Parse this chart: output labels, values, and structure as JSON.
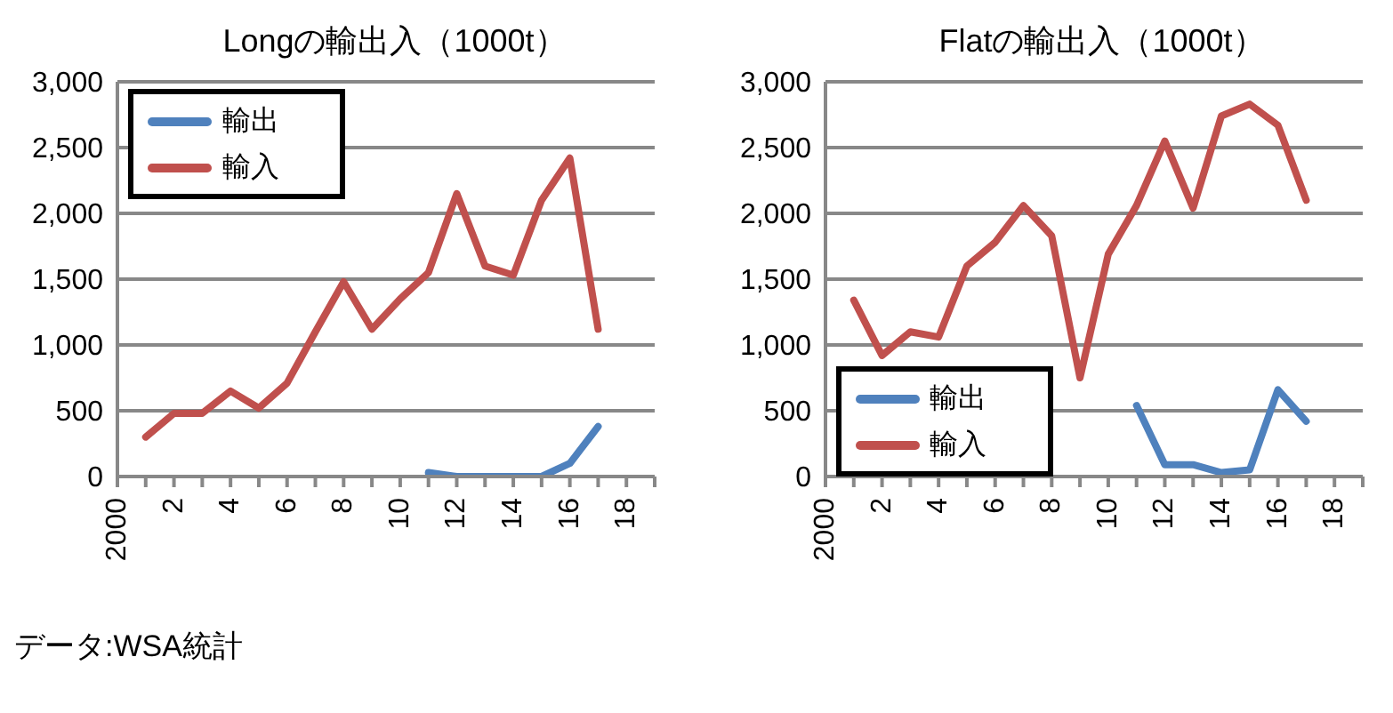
{
  "chart_data": [
    {
      "type": "line",
      "title": "Longの輸出入（1000t）",
      "categories": [
        "2000",
        null,
        "2",
        null,
        "4",
        null,
        "6",
        null,
        "8",
        null,
        "10",
        null,
        "12",
        null,
        "14",
        null,
        "16",
        null,
        "18",
        null
      ],
      "series": [
        {
          "name": "輸出",
          "color": "#4f81bd",
          "values": [
            null,
            null,
            null,
            null,
            null,
            null,
            null,
            null,
            null,
            null,
            null,
            30,
            0,
            0,
            0,
            0,
            100,
            380,
            null,
            null
          ]
        },
        {
          "name": "輸入",
          "color": "#c0504d",
          "values": [
            null,
            300,
            480,
            480,
            650,
            520,
            710,
            1100,
            1480,
            1120,
            1350,
            1550,
            2150,
            1600,
            1530,
            2100,
            2420,
            1120,
            null,
            null
          ]
        }
      ],
      "ylim": [
        0,
        3000
      ],
      "yticks": [
        {
          "value": 0,
          "label": "0"
        },
        {
          "value": 500,
          "label": "500"
        },
        {
          "value": 1000,
          "label": "1,000"
        },
        {
          "value": 1500,
          "label": "1,500"
        },
        {
          "value": 2000,
          "label": "2,000"
        },
        {
          "value": 2500,
          "label": "2,500"
        },
        {
          "value": 3000,
          "label": "3,000"
        }
      ],
      "grid": "y",
      "legend": "top left",
      "marker": "none",
      "line_style": "solid",
      "annotations": [
        "データ:WSA統計"
      ]
    },
    {
      "type": "line",
      "title": "Flatの輸出入（1000t）",
      "categories": [
        "2000",
        null,
        "2",
        null,
        "4",
        null,
        "6",
        null,
        "8",
        null,
        "10",
        null,
        "12",
        null,
        "14",
        null,
        "16",
        null,
        "18",
        null
      ],
      "series": [
        {
          "name": "輸出",
          "color": "#4f81bd",
          "values": [
            null,
            null,
            null,
            null,
            null,
            null,
            null,
            null,
            null,
            null,
            null,
            540,
            90,
            90,
            30,
            50,
            660,
            420,
            null,
            null
          ]
        },
        {
          "name": "輸入",
          "color": "#c0504d",
          "values": [
            null,
            1340,
            920,
            1100,
            1060,
            1600,
            1780,
            2060,
            1830,
            750,
            1690,
            2060,
            2550,
            2040,
            2740,
            2830,
            2670,
            2100,
            null,
            null
          ]
        }
      ],
      "ylim": [
        0,
        3000
      ],
      "yticks": [
        {
          "value": 0,
          "label": "0"
        },
        {
          "value": 500,
          "label": "500"
        },
        {
          "value": 1000,
          "label": "1,000"
        },
        {
          "value": 1500,
          "label": "1,500"
        },
        {
          "value": 2000,
          "label": "2,000"
        },
        {
          "value": 2500,
          "label": "2,500"
        },
        {
          "value": 3000,
          "label": "3,000"
        }
      ],
      "grid": "y",
      "legend": "bottom left",
      "marker": "none",
      "line_style": "solid"
    }
  ]
}
